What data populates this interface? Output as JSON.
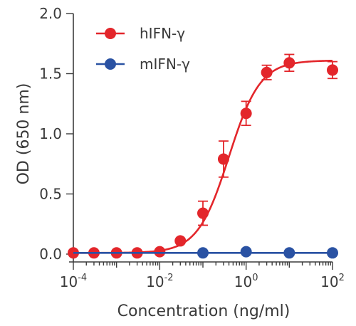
{
  "chart_data": {
    "type": "scatter",
    "xlabel": "Concentration (ng/ml)",
    "ylabel": "OD (650 nm)",
    "x_scale": "log",
    "xlim": [
      0.0001,
      100
    ],
    "ylim": [
      0,
      2.0
    ],
    "y_ticks": [
      "0.0",
      "0.5",
      "1.0",
      "1.5",
      "2.0"
    ],
    "x_ticks": [
      {
        "base": "10",
        "exp": "-4",
        "value": 0.0001
      },
      {
        "base": "10",
        "exp": "-2",
        "value": 0.01
      },
      {
        "base": "10",
        "exp": "0",
        "value": 1
      },
      {
        "base": "10",
        "exp": "2",
        "value": 100
      }
    ],
    "legend_position": "top-left",
    "series": [
      {
        "name": "hIFN-γ",
        "color": "#e3262b",
        "fit": "four-parameter logistic",
        "points": [
          {
            "x": 0.0001,
            "y": 0.01,
            "err": 0.01
          },
          {
            "x": 0.0003,
            "y": 0.01,
            "err": 0.01
          },
          {
            "x": 0.001,
            "y": 0.01,
            "err": 0.01
          },
          {
            "x": 0.003,
            "y": 0.01,
            "err": 0.01
          },
          {
            "x": 0.01,
            "y": 0.02,
            "err": 0.01
          },
          {
            "x": 0.03,
            "y": 0.11,
            "err": 0.02
          },
          {
            "x": 0.1,
            "y": 0.34,
            "err": 0.1
          },
          {
            "x": 0.3,
            "y": 0.79,
            "err": 0.15
          },
          {
            "x": 1,
            "y": 1.17,
            "err": 0.1
          },
          {
            "x": 3,
            "y": 1.51,
            "err": 0.06
          },
          {
            "x": 10,
            "y": 1.59,
            "err": 0.07
          },
          {
            "x": 100,
            "y": 1.53,
            "err": 0.07
          }
        ],
        "curve": {
          "bottom": 0.01,
          "top": 1.61,
          "ec50": 0.4,
          "hill": 1.2
        }
      },
      {
        "name": "mIFN-γ",
        "color": "#2a52a3",
        "points": [
          {
            "x": 0.1,
            "y": 0.01
          },
          {
            "x": 1,
            "y": 0.02
          },
          {
            "x": 10,
            "y": 0.01
          },
          {
            "x": 100,
            "y": 0.01
          }
        ]
      }
    ]
  }
}
